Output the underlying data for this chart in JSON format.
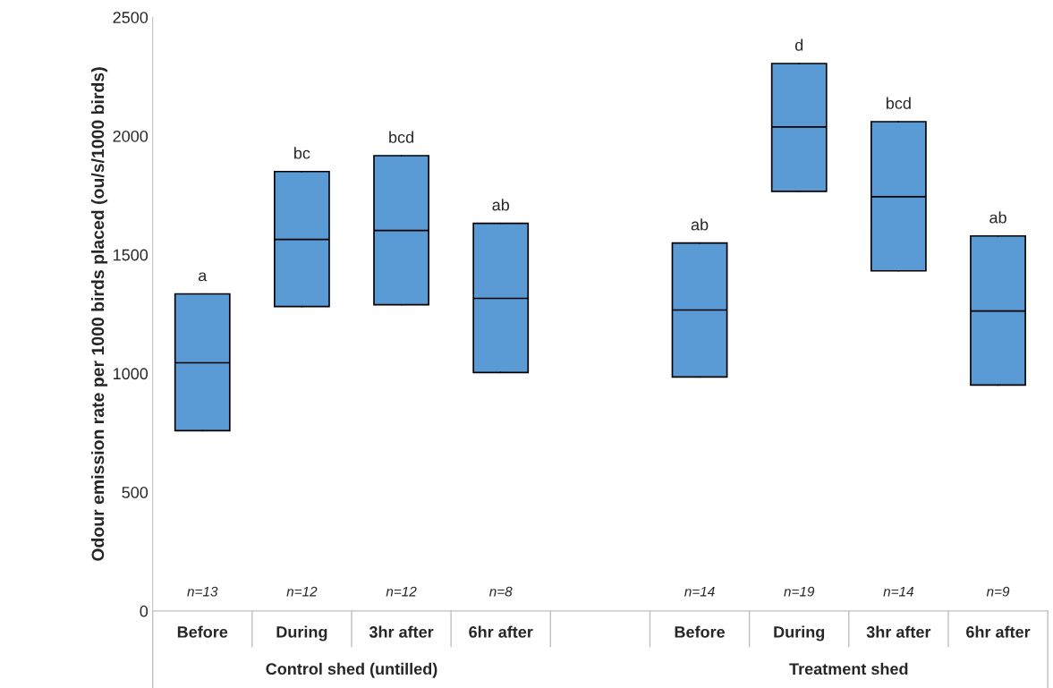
{
  "chart_data": {
    "type": "box",
    "ylabel": "Odour emission rate per 1000 birds placed (ou/s/1000 birds)",
    "categories": [
      "Before",
      "During",
      "3hr after",
      "6hr after",
      null,
      "Before",
      "During",
      "3hr after",
      "6hr after"
    ],
    "color": "#5b9bd5",
    "boxes": [
      {
        "low": 759,
        "q1": 759,
        "median": 1045,
        "q3": 1335,
        "high": 1335
      },
      {
        "low": 1282,
        "q1": 1282,
        "median": 1564,
        "q3": 1850,
        "high": 1850
      },
      {
        "low": 1289,
        "q1": 1289,
        "median": 1602,
        "q3": 1917,
        "high": 1917
      },
      {
        "low": 1004,
        "q1": 1004,
        "median": 1316,
        "q3": 1632,
        "high": 1632
      },
      null,
      {
        "low": 985,
        "q1": 985,
        "median": 1267,
        "q3": 1549,
        "high": 1549
      },
      {
        "low": 1767,
        "q1": 1767,
        "median": 2038,
        "q3": 2305,
        "high": 2305
      },
      {
        "low": 1432,
        "q1": 1432,
        "median": 1744,
        "q3": 2060,
        "high": 2060
      },
      {
        "low": 951,
        "q1": 951,
        "median": 1263,
        "q3": 1579,
        "high": 1579
      }
    ],
    "ylim": [
      0,
      2500
    ],
    "yticks": [
      0,
      500,
      1000,
      1500,
      2000,
      2500
    ],
    "grid": false,
    "legend": false,
    "annotations": [
      "a",
      "bc",
      "bcd",
      "ab",
      "ab",
      "d",
      "bcd",
      "ab",
      "n=13",
      "n=12",
      "n=12",
      "n=8",
      "n=14",
      "n=19",
      "n=14",
      "n=9",
      "Control shed (untilled)",
      "Treatment shed"
    ]
  }
}
